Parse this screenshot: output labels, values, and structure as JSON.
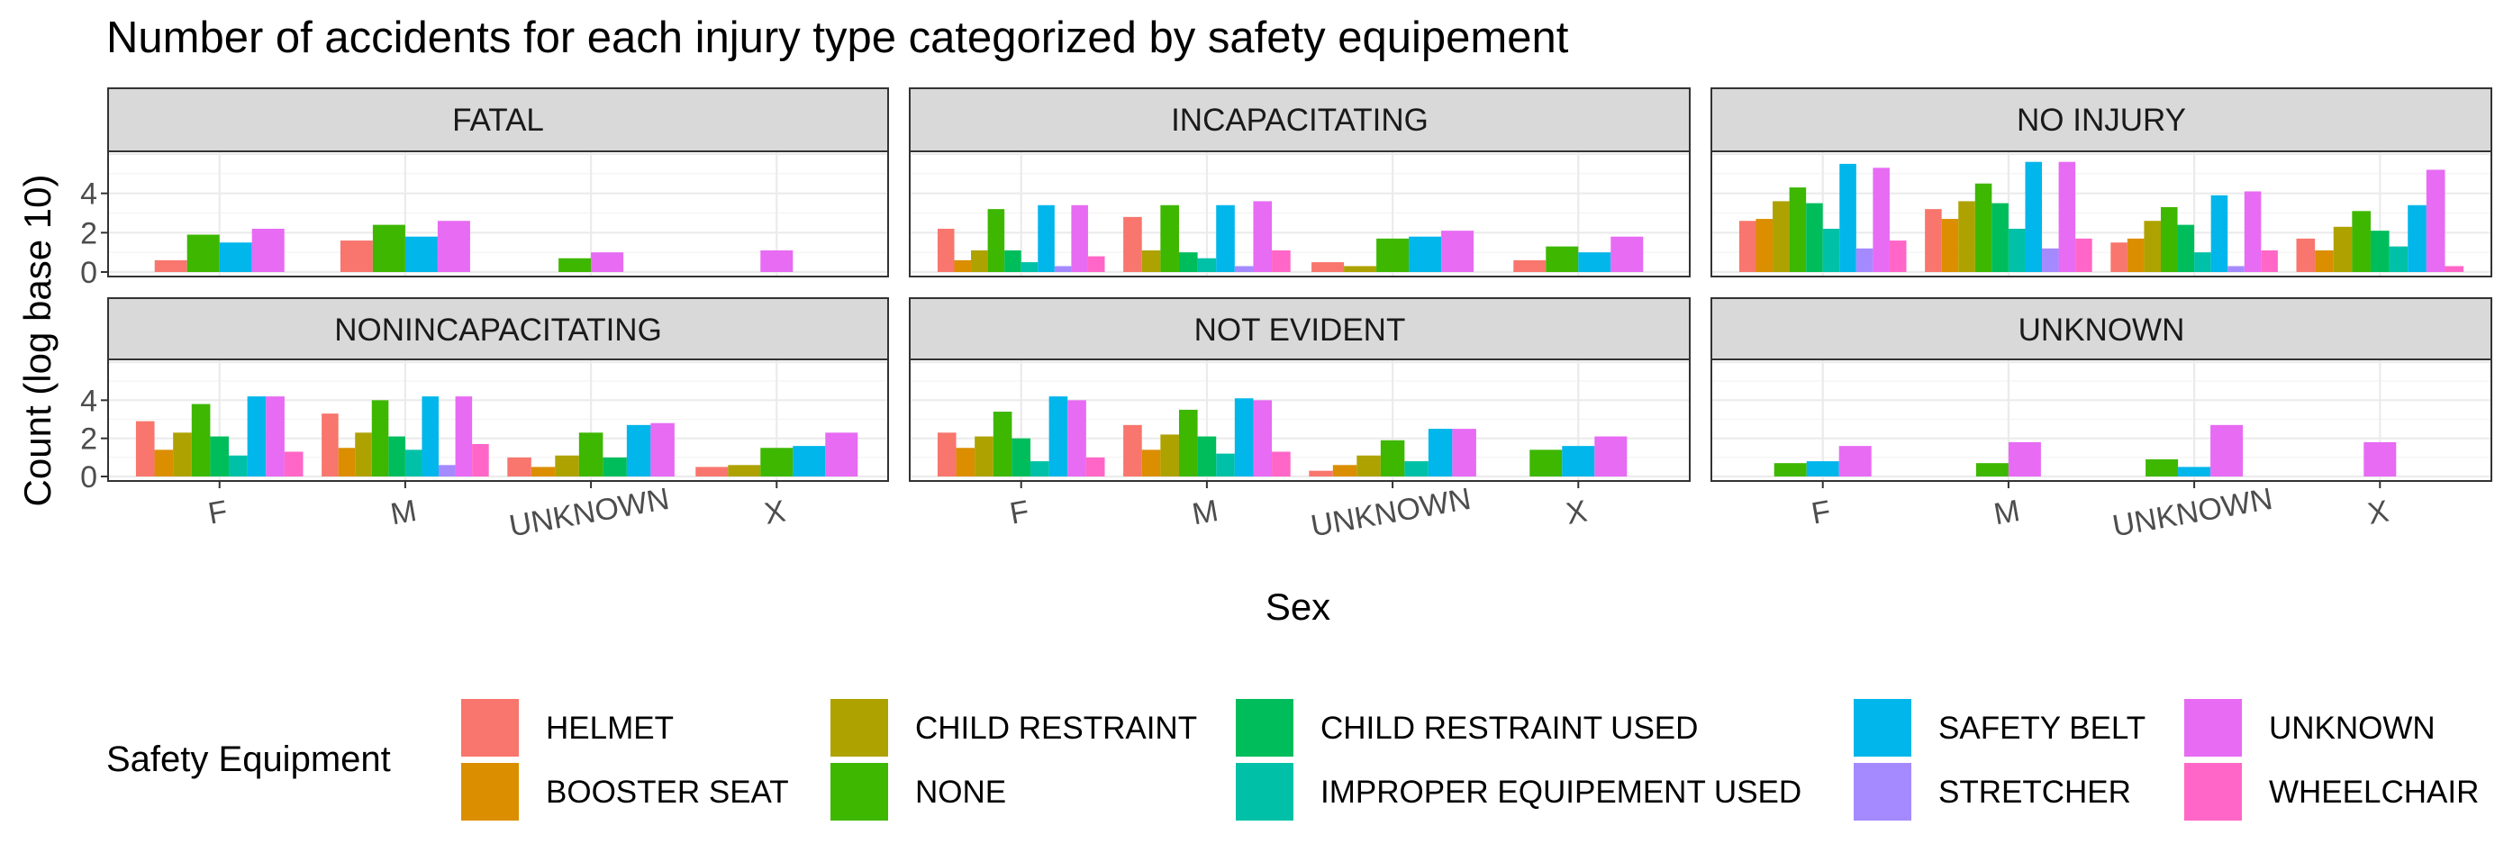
{
  "chart_data": {
    "type": "bar",
    "title": "Number of accidents for each injury type categorized by safety equipement",
    "xlabel": "Sex",
    "ylabel": "Count (log base 10)",
    "categories": [
      "F",
      "M",
      "UNKNOWN",
      "X"
    ],
    "y_ticks": [
      0,
      2,
      4
    ],
    "ylim": [
      0,
      6
    ],
    "grid": true,
    "legend_position": "bottom",
    "legend": {
      "title": "Safety Equipment",
      "entries": [
        {
          "name": "HELMET",
          "color": "#F8766D"
        },
        {
          "name": "BOOSTER SEAT",
          "color": "#DB8E00"
        },
        {
          "name": "CHILD RESTRAINT",
          "color": "#AEA200"
        },
        {
          "name": "NONE",
          "color": "#3DB700"
        },
        {
          "name": "CHILD RESTRAINT USED",
          "color": "#00BD5C"
        },
        {
          "name": "IMPROPER EQUIPEMENT USED",
          "color": "#00C1A7"
        },
        {
          "name": "SAFETY BELT",
          "color": "#00B6EB"
        },
        {
          "name": "STRETCHER",
          "color": "#A58AFF"
        },
        {
          "name": "UNKNOWN",
          "color": "#E76BF3"
        },
        {
          "name": "WHEELCHAIR",
          "color": "#FF66C8"
        }
      ]
    },
    "facets": [
      {
        "name": "FATAL",
        "groups": [
          {
            "category": "F",
            "bars": [
              {
                "equipment": "HELMET",
                "value": 0.6
              },
              {
                "equipment": "NONE",
                "value": 1.9
              },
              {
                "equipment": "SAFETY BELT",
                "value": 1.5
              },
              {
                "equipment": "UNKNOWN",
                "value": 2.2
              }
            ]
          },
          {
            "category": "M",
            "bars": [
              {
                "equipment": "HELMET",
                "value": 1.6
              },
              {
                "equipment": "NONE",
                "value": 2.4
              },
              {
                "equipment": "SAFETY BELT",
                "value": 1.8
              },
              {
                "equipment": "UNKNOWN",
                "value": 2.6
              }
            ]
          },
          {
            "category": "UNKNOWN",
            "bars": [
              {
                "equipment": "NONE",
                "value": 0.7
              },
              {
                "equipment": "UNKNOWN",
                "value": 1.0
              }
            ]
          },
          {
            "category": "X",
            "bars": [
              {
                "equipment": "UNKNOWN",
                "value": 1.1
              }
            ]
          }
        ]
      },
      {
        "name": "INCAPACITATING",
        "groups": [
          {
            "category": "F",
            "bars": [
              {
                "equipment": "HELMET",
                "value": 2.2
              },
              {
                "equipment": "BOOSTER SEAT",
                "value": 0.6
              },
              {
                "equipment": "CHILD RESTRAINT",
                "value": 1.1
              },
              {
                "equipment": "NONE",
                "value": 3.2
              },
              {
                "equipment": "CHILD RESTRAINT USED",
                "value": 1.1
              },
              {
                "equipment": "IMPROPER EQUIPEMENT USED",
                "value": 0.5
              },
              {
                "equipment": "SAFETY BELT",
                "value": 3.4
              },
              {
                "equipment": "STRETCHER",
                "value": 0.3
              },
              {
                "equipment": "UNKNOWN",
                "value": 3.4
              },
              {
                "equipment": "WHEELCHAIR",
                "value": 0.8
              }
            ]
          },
          {
            "category": "M",
            "bars": [
              {
                "equipment": "HELMET",
                "value": 2.8
              },
              {
                "equipment": "CHILD RESTRAINT",
                "value": 1.1
              },
              {
                "equipment": "NONE",
                "value": 3.4
              },
              {
                "equipment": "CHILD RESTRAINT USED",
                "value": 1.0
              },
              {
                "equipment": "IMPROPER EQUIPEMENT USED",
                "value": 0.7
              },
              {
                "equipment": "SAFETY BELT",
                "value": 3.4
              },
              {
                "equipment": "STRETCHER",
                "value": 0.3
              },
              {
                "equipment": "UNKNOWN",
                "value": 3.6
              },
              {
                "equipment": "WHEELCHAIR",
                "value": 1.1
              }
            ]
          },
          {
            "category": "UNKNOWN",
            "bars": [
              {
                "equipment": "HELMET",
                "value": 0.5
              },
              {
                "equipment": "CHILD RESTRAINT",
                "value": 0.3
              },
              {
                "equipment": "NONE",
                "value": 1.7
              },
              {
                "equipment": "SAFETY BELT",
                "value": 1.8
              },
              {
                "equipment": "UNKNOWN",
                "value": 2.1
              }
            ]
          },
          {
            "category": "X",
            "bars": [
              {
                "equipment": "HELMET",
                "value": 0.6
              },
              {
                "equipment": "NONE",
                "value": 1.3
              },
              {
                "equipment": "SAFETY BELT",
                "value": 1.0
              },
              {
                "equipment": "UNKNOWN",
                "value": 1.8
              }
            ]
          }
        ]
      },
      {
        "name": "NO INJURY",
        "groups": [
          {
            "category": "F",
            "bars": [
              {
                "equipment": "HELMET",
                "value": 2.6
              },
              {
                "equipment": "BOOSTER SEAT",
                "value": 2.7
              },
              {
                "equipment": "CHILD RESTRAINT",
                "value": 3.6
              },
              {
                "equipment": "NONE",
                "value": 4.3
              },
              {
                "equipment": "CHILD RESTRAINT USED",
                "value": 3.5
              },
              {
                "equipment": "IMPROPER EQUIPEMENT USED",
                "value": 2.2
              },
              {
                "equipment": "SAFETY BELT",
                "value": 5.5
              },
              {
                "equipment": "STRETCHER",
                "value": 1.2
              },
              {
                "equipment": "UNKNOWN",
                "value": 5.3
              },
              {
                "equipment": "WHEELCHAIR",
                "value": 1.6
              }
            ]
          },
          {
            "category": "M",
            "bars": [
              {
                "equipment": "HELMET",
                "value": 3.2
              },
              {
                "equipment": "BOOSTER SEAT",
                "value": 2.7
              },
              {
                "equipment": "CHILD RESTRAINT",
                "value": 3.6
              },
              {
                "equipment": "NONE",
                "value": 4.5
              },
              {
                "equipment": "CHILD RESTRAINT USED",
                "value": 3.5
              },
              {
                "equipment": "IMPROPER EQUIPEMENT USED",
                "value": 2.2
              },
              {
                "equipment": "SAFETY BELT",
                "value": 5.6
              },
              {
                "equipment": "STRETCHER",
                "value": 1.2
              },
              {
                "equipment": "UNKNOWN",
                "value": 5.6
              },
              {
                "equipment": "WHEELCHAIR",
                "value": 1.7
              }
            ]
          },
          {
            "category": "UNKNOWN",
            "bars": [
              {
                "equipment": "HELMET",
                "value": 1.5
              },
              {
                "equipment": "BOOSTER SEAT",
                "value": 1.7
              },
              {
                "equipment": "CHILD RESTRAINT",
                "value": 2.6
              },
              {
                "equipment": "NONE",
                "value": 3.3
              },
              {
                "equipment": "CHILD RESTRAINT USED",
                "value": 2.4
              },
              {
                "equipment": "IMPROPER EQUIPEMENT USED",
                "value": 1.0
              },
              {
                "equipment": "SAFETY BELT",
                "value": 3.9
              },
              {
                "equipment": "STRETCHER",
                "value": 0.3
              },
              {
                "equipment": "UNKNOWN",
                "value": 4.1
              },
              {
                "equipment": "WHEELCHAIR",
                "value": 1.1
              }
            ]
          },
          {
            "category": "X",
            "bars": [
              {
                "equipment": "HELMET",
                "value": 1.7
              },
              {
                "equipment": "BOOSTER SEAT",
                "value": 1.1
              },
              {
                "equipment": "CHILD RESTRAINT",
                "value": 2.3
              },
              {
                "equipment": "NONE",
                "value": 3.1
              },
              {
                "equipment": "CHILD RESTRAINT USED",
                "value": 2.1
              },
              {
                "equipment": "IMPROPER EQUIPEMENT USED",
                "value": 1.3
              },
              {
                "equipment": "SAFETY BELT",
                "value": 3.4
              },
              {
                "equipment": "UNKNOWN",
                "value": 5.2
              },
              {
                "equipment": "WHEELCHAIR",
                "value": 0.3
              }
            ]
          }
        ]
      },
      {
        "name": "NONINCAPACITATING",
        "groups": [
          {
            "category": "F",
            "bars": [
              {
                "equipment": "HELMET",
                "value": 2.9
              },
              {
                "equipment": "BOOSTER SEAT",
                "value": 1.4
              },
              {
                "equipment": "CHILD RESTRAINT",
                "value": 2.3
              },
              {
                "equipment": "NONE",
                "value": 3.8
              },
              {
                "equipment": "CHILD RESTRAINT USED",
                "value": 2.1
              },
              {
                "equipment": "IMPROPER EQUIPEMENT USED",
                "value": 1.1
              },
              {
                "equipment": "SAFETY BELT",
                "value": 4.2
              },
              {
                "equipment": "UNKNOWN",
                "value": 4.2
              },
              {
                "equipment": "WHEELCHAIR",
                "value": 1.3
              }
            ]
          },
          {
            "category": "M",
            "bars": [
              {
                "equipment": "HELMET",
                "value": 3.3
              },
              {
                "equipment": "BOOSTER SEAT",
                "value": 1.5
              },
              {
                "equipment": "CHILD RESTRAINT",
                "value": 2.3
              },
              {
                "equipment": "NONE",
                "value": 4.0
              },
              {
                "equipment": "CHILD RESTRAINT USED",
                "value": 2.1
              },
              {
                "equipment": "IMPROPER EQUIPEMENT USED",
                "value": 1.4
              },
              {
                "equipment": "SAFETY BELT",
                "value": 4.2
              },
              {
                "equipment": "STRETCHER",
                "value": 0.6
              },
              {
                "equipment": "UNKNOWN",
                "value": 4.2
              },
              {
                "equipment": "WHEELCHAIR",
                "value": 1.7
              }
            ]
          },
          {
            "category": "UNKNOWN",
            "bars": [
              {
                "equipment": "HELMET",
                "value": 1.0
              },
              {
                "equipment": "BOOSTER SEAT",
                "value": 0.5
              },
              {
                "equipment": "CHILD RESTRAINT",
                "value": 1.1
              },
              {
                "equipment": "NONE",
                "value": 2.3
              },
              {
                "equipment": "CHILD RESTRAINT USED",
                "value": 1.0
              },
              {
                "equipment": "SAFETY BELT",
                "value": 2.7
              },
              {
                "equipment": "UNKNOWN",
                "value": 2.8
              }
            ]
          },
          {
            "category": "X",
            "bars": [
              {
                "equipment": "HELMET",
                "value": 0.5
              },
              {
                "equipment": "CHILD RESTRAINT",
                "value": 0.6
              },
              {
                "equipment": "NONE",
                "value": 1.5
              },
              {
                "equipment": "SAFETY BELT",
                "value": 1.6
              },
              {
                "equipment": "UNKNOWN",
                "value": 2.3
              }
            ]
          }
        ]
      },
      {
        "name": "NOT EVIDENT",
        "groups": [
          {
            "category": "F",
            "bars": [
              {
                "equipment": "HELMET",
                "value": 2.3
              },
              {
                "equipment": "BOOSTER SEAT",
                "value": 1.5
              },
              {
                "equipment": "CHILD RESTRAINT",
                "value": 2.1
              },
              {
                "equipment": "NONE",
                "value": 3.4
              },
              {
                "equipment": "CHILD RESTRAINT USED",
                "value": 2.0
              },
              {
                "equipment": "IMPROPER EQUIPEMENT USED",
                "value": 0.8
              },
              {
                "equipment": "SAFETY BELT",
                "value": 4.2
              },
              {
                "equipment": "UNKNOWN",
                "value": 4.0
              },
              {
                "equipment": "WHEELCHAIR",
                "value": 1.0
              }
            ]
          },
          {
            "category": "M",
            "bars": [
              {
                "equipment": "HELMET",
                "value": 2.7
              },
              {
                "equipment": "BOOSTER SEAT",
                "value": 1.4
              },
              {
                "equipment": "CHILD RESTRAINT",
                "value": 2.2
              },
              {
                "equipment": "NONE",
                "value": 3.5
              },
              {
                "equipment": "CHILD RESTRAINT USED",
                "value": 2.1
              },
              {
                "equipment": "IMPROPER EQUIPEMENT USED",
                "value": 1.2
              },
              {
                "equipment": "SAFETY BELT",
                "value": 4.1
              },
              {
                "equipment": "UNKNOWN",
                "value": 4.0
              },
              {
                "equipment": "WHEELCHAIR",
                "value": 1.3
              }
            ]
          },
          {
            "category": "UNKNOWN",
            "bars": [
              {
                "equipment": "HELMET",
                "value": 0.3
              },
              {
                "equipment": "BOOSTER SEAT",
                "value": 0.6
              },
              {
                "equipment": "CHILD RESTRAINT",
                "value": 1.1
              },
              {
                "equipment": "NONE",
                "value": 1.9
              },
              {
                "equipment": "IMPROPER EQUIPEMENT USED",
                "value": 0.8
              },
              {
                "equipment": "SAFETY BELT",
                "value": 2.5
              },
              {
                "equipment": "UNKNOWN",
                "value": 2.5
              }
            ]
          },
          {
            "category": "X",
            "bars": [
              {
                "equipment": "NONE",
                "value": 1.4
              },
              {
                "equipment": "SAFETY BELT",
                "value": 1.6
              },
              {
                "equipment": "UNKNOWN",
                "value": 2.1
              }
            ]
          }
        ]
      },
      {
        "name": "UNKNOWN",
        "groups": [
          {
            "category": "F",
            "bars": [
              {
                "equipment": "NONE",
                "value": 0.7
              },
              {
                "equipment": "SAFETY BELT",
                "value": 0.8
              },
              {
                "equipment": "UNKNOWN",
                "value": 1.6
              }
            ]
          },
          {
            "category": "M",
            "bars": [
              {
                "equipment": "NONE",
                "value": 0.7
              },
              {
                "equipment": "UNKNOWN",
                "value": 1.8
              }
            ]
          },
          {
            "category": "UNKNOWN",
            "bars": [
              {
                "equipment": "NONE",
                "value": 0.9
              },
              {
                "equipment": "SAFETY BELT",
                "value": 0.5
              },
              {
                "equipment": "UNKNOWN",
                "value": 2.7
              }
            ]
          },
          {
            "category": "X",
            "bars": [
              {
                "equipment": "UNKNOWN",
                "value": 1.8
              }
            ]
          }
        ]
      }
    ]
  }
}
